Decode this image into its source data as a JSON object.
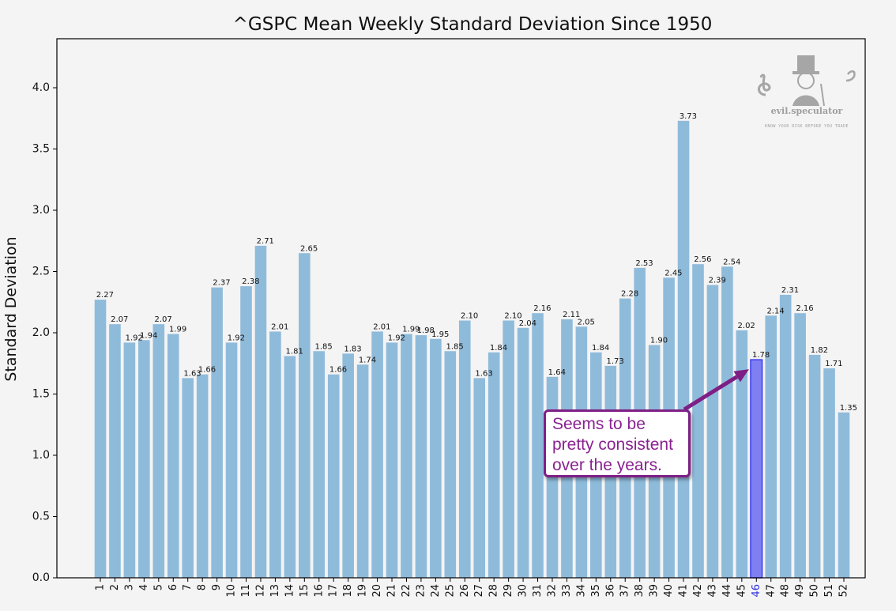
{
  "chart_data": {
    "type": "bar",
    "title": "^GSPC Mean Weekly Standard Deviation Since 1950",
    "xlabel": "",
    "ylabel": "Standard Deviation",
    "ylim": [
      0,
      4.4
    ],
    "yticks": [
      "0.0",
      "0.5",
      "1.0",
      "1.5",
      "2.0",
      "2.5",
      "3.0",
      "3.5",
      "4.0"
    ],
    "categories": [
      "1",
      "2",
      "3",
      "4",
      "5",
      "6",
      "7",
      "8",
      "9",
      "10",
      "11",
      "12",
      "13",
      "14",
      "15",
      "16",
      "17",
      "18",
      "19",
      "20",
      "21",
      "22",
      "23",
      "24",
      "25",
      "26",
      "27",
      "28",
      "29",
      "30",
      "31",
      "32",
      "33",
      "34",
      "35",
      "36",
      "37",
      "38",
      "39",
      "40",
      "41",
      "42",
      "43",
      "44",
      "45",
      "46",
      "47",
      "48",
      "49",
      "50",
      "51",
      "52"
    ],
    "values": [
      2.27,
      2.07,
      1.92,
      1.94,
      2.07,
      1.99,
      1.63,
      1.66,
      2.37,
      1.92,
      2.38,
      2.71,
      2.01,
      1.81,
      2.65,
      1.85,
      1.66,
      1.83,
      1.74,
      2.01,
      1.92,
      1.99,
      1.98,
      1.95,
      1.85,
      2.1,
      1.63,
      1.84,
      2.1,
      2.04,
      2.16,
      1.64,
      2.11,
      2.05,
      1.84,
      1.73,
      2.28,
      2.53,
      1.9,
      2.45,
      3.73,
      2.56,
      2.39,
      2.54,
      2.02,
      1.78,
      2.14,
      2.31,
      2.16,
      1.82,
      1.71,
      1.35
    ],
    "value_labels": [
      "2.27",
      "2.07",
      "1.92",
      "1.94",
      "2.07",
      "1.99",
      "1.63",
      "1.66",
      "2.37",
      "1.92",
      "2.38",
      "2.71",
      "2.01",
      "1.81",
      "2.65",
      "1.85",
      "1.66",
      "1.83",
      "1.74",
      "2.01",
      "1.92",
      "1.99",
      "1.98",
      "1.95",
      "1.85",
      "2.10",
      "1.63",
      "1.84",
      "2.10",
      "2.04",
      "2.16",
      "1.64",
      "2.11",
      "2.05",
      "1.84",
      "1.73",
      "2.28",
      "2.53",
      "1.90",
      "2.45",
      "3.73",
      "2.56",
      "2.39",
      "2.54",
      "2.02",
      "1.78",
      "2.14",
      "2.31",
      "2.16",
      "1.82",
      "1.71",
      "1.35"
    ],
    "highlight_category": "46",
    "grid": false,
    "colors": {
      "bar": "#8fbbdb",
      "highlight_bar": "#7f7ff4",
      "highlight_edge": "#3d3dea",
      "highlight_tick": "#3232e0",
      "arrow": "#7e1f86",
      "annotation_text": "#8a2291"
    },
    "annotation": {
      "lines": [
        "Seems to be",
        "pretty consistent",
        "over the years."
      ],
      "points_to": "46"
    },
    "watermark": {
      "name": "evil.speculator",
      "tagline": "KNOW YOUR RISK BEFORE YOU TRADE"
    }
  }
}
